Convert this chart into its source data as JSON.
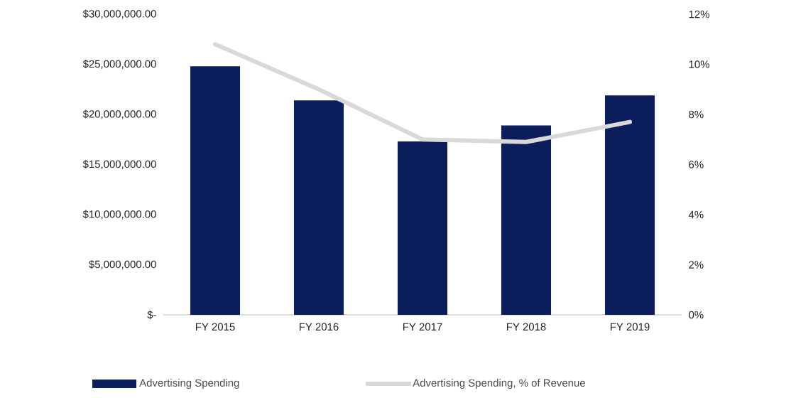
{
  "chart_data": {
    "type": "bar",
    "categories": [
      "FY 2015",
      "FY 2016",
      "FY 2017",
      "FY 2018",
      "FY 2019"
    ],
    "series": [
      {
        "name": "Advertising Spending",
        "color": "#0c1e5b",
        "values": [
          24800000,
          21400000,
          17300000,
          18900000,
          21900000
        ]
      },
      {
        "name": "Advertising Spending, % of Revenue",
        "type": "line",
        "axis": "y2",
        "color": "#d9d9d9",
        "values": [
          10.8,
          9.0,
          7.0,
          6.9,
          7.7
        ]
      }
    ],
    "ylim": [
      0,
      30000000
    ],
    "yticks": [
      {
        "value": 0,
        "label": "$-"
      },
      {
        "value": 5000000,
        "label": "$5,000,000.00"
      },
      {
        "value": 10000000,
        "label": "$10,000,000.00"
      },
      {
        "value": 15000000,
        "label": "$15,000,000.00"
      },
      {
        "value": 20000000,
        "label": "$20,000,000.00"
      },
      {
        "value": 25000000,
        "label": "$25,000,000.00"
      },
      {
        "value": 30000000,
        "label": "$30,000,000.00"
      }
    ],
    "y2lim": [
      0,
      12
    ],
    "y2ticks": [
      {
        "value": 0,
        "label": "0%"
      },
      {
        "value": 2,
        "label": "2%"
      },
      {
        "value": 4,
        "label": "4%"
      },
      {
        "value": 6,
        "label": "6%"
      },
      {
        "value": 8,
        "label": "8%"
      },
      {
        "value": 10,
        "label": "10%"
      },
      {
        "value": 12,
        "label": "12%"
      }
    ],
    "legend": "bottom",
    "marker": "none",
    "grid": false
  }
}
